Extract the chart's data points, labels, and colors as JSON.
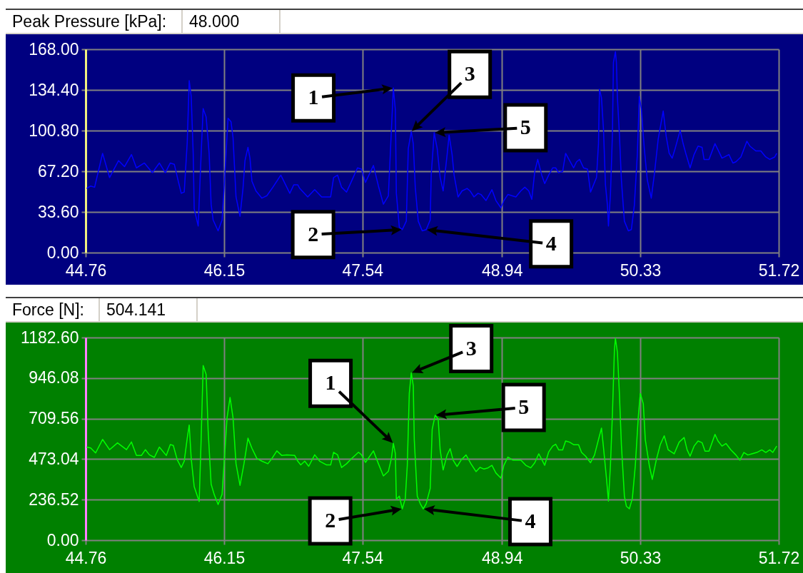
{
  "chart_data": [
    {
      "type": "line",
      "title": "Peak Pressure [kPa]:",
      "subtitle": "48.000",
      "x": [
        44.77,
        44.81,
        44.85,
        44.87,
        44.93,
        45.0,
        45.09,
        45.15,
        45.22,
        45.27,
        45.35,
        45.43,
        45.5,
        45.56,
        45.61,
        45.65,
        45.69,
        45.72,
        45.75,
        45.78,
        45.8,
        45.82,
        45.84,
        45.85,
        45.89,
        45.92,
        45.94,
        45.97,
        46.0,
        46.02,
        46.04,
        46.09,
        46.13,
        46.15,
        46.17,
        46.19,
        46.22,
        46.24,
        46.27,
        46.31,
        46.34,
        46.36,
        46.39,
        46.41,
        46.43,
        46.47,
        46.53,
        46.58,
        46.64,
        46.72,
        46.81,
        46.85,
        46.89,
        46.91,
        46.99,
        47.06,
        47.13,
        47.22,
        47.25,
        47.29,
        47.33,
        47.38,
        47.43,
        47.49,
        47.53,
        47.57,
        47.65,
        47.7,
        47.75,
        47.8,
        47.83,
        47.85,
        47.87,
        47.88,
        47.91,
        47.94,
        47.98,
        48.0,
        48.03,
        48.05,
        48.07,
        48.1,
        48.14,
        48.18,
        48.22,
        48.23,
        48.26,
        48.29,
        48.32,
        48.35,
        48.39,
        48.41,
        48.44,
        48.46,
        48.5,
        48.54,
        48.59,
        48.62,
        48.66,
        48.7,
        48.73,
        48.78,
        48.84,
        48.88,
        48.93,
        48.96,
        49.0,
        49.08,
        49.13,
        49.17,
        49.21,
        49.24,
        49.27,
        49.3,
        49.34,
        49.37,
        49.41,
        49.45,
        49.48,
        49.51,
        49.55,
        49.58,
        49.62,
        49.66,
        49.69,
        49.72,
        49.76,
        49.8,
        49.83,
        49.89,
        49.91,
        49.92,
        49.94,
        49.96,
        49.98,
        50.0,
        50.01,
        50.03,
        50.05,
        50.06,
        50.08,
        50.09,
        50.1,
        50.12,
        50.14,
        50.17,
        50.21,
        50.24,
        50.27,
        50.3,
        50.32,
        50.34,
        50.37,
        50.4,
        50.44,
        50.47,
        50.51,
        50.56,
        50.59,
        50.62,
        50.65,
        50.68,
        50.73,
        50.76,
        50.79,
        50.83,
        50.87,
        50.91,
        50.95,
        50.97,
        51.02,
        51.08,
        51.11,
        51.15,
        51.22,
        51.26,
        51.29,
        51.34,
        51.4,
        51.43,
        51.49,
        51.54,
        51.59,
        51.63,
        51.68,
        51.7
      ],
      "series": [
        {
          "color": "#0000ff",
          "values": [
            53,
            55,
            54,
            61,
            82,
            62,
            76,
            71,
            81,
            70,
            74,
            66,
            74,
            66,
            74,
            73,
            59,
            49,
            50,
            91,
            142,
            129,
            82,
            36,
            22,
            82,
            119,
            112,
            82,
            40,
            27,
            18,
            27,
            53,
            82,
            111,
            108,
            95,
            46,
            30,
            53,
            76,
            87,
            78,
            59,
            51,
            45,
            47,
            54,
            64,
            49,
            56,
            56,
            53,
            46,
            52,
            46,
            46,
            62,
            64,
            54,
            50,
            59,
            70,
            69,
            58,
            72,
            55,
            40,
            47,
            101,
            136,
            118,
            49,
            21,
            19,
            26,
            86,
            100,
            90,
            54,
            26,
            18,
            19,
            27,
            64,
            99,
            86,
            62,
            51,
            81,
            97,
            81,
            64,
            46,
            51,
            53,
            51,
            46,
            49,
            48,
            43,
            52,
            43,
            37,
            43,
            48,
            46,
            51,
            54,
            51,
            44,
            67,
            77,
            64,
            57,
            64,
            70,
            70,
            66,
            67,
            82,
            76,
            70,
            75,
            77,
            70,
            69,
            50,
            62,
            90,
            135,
            128,
            102,
            56,
            39,
            22,
            48,
            98,
            157,
            166,
            157,
            128,
            98,
            60,
            26,
            18,
            19,
            39,
            81,
            129,
            119,
            86,
            60,
            45,
            64,
            94,
            117,
            96,
            82,
            78,
            86,
            101,
            90,
            81,
            70,
            81,
            88,
            87,
            77,
            77,
            90,
            85,
            78,
            81,
            74,
            75,
            79,
            92,
            88,
            84,
            84,
            79,
            77,
            79,
            82
          ]
        }
      ],
      "xlim": [
        44.76,
        51.72
      ],
      "xticks": [
        44.76,
        46.15,
        47.54,
        48.94,
        50.33,
        51.72
      ],
      "ylim": [
        0,
        168
      ],
      "yticks": [
        {
          "value": 0,
          "label": "0.00"
        },
        {
          "value": 33.6,
          "label": "33.60"
        },
        {
          "value": 67.2,
          "label": "67.20"
        },
        {
          "value": 100.8,
          "label": "100.80"
        },
        {
          "value": 134.4,
          "label": "134.40"
        },
        {
          "value": 168,
          "label": "168.00"
        }
      ],
      "grid": true,
      "annotations": [
        {
          "text": "1",
          "x": 47.85,
          "y": 136
        },
        {
          "text": "2",
          "x": 47.94,
          "y": 19
        },
        {
          "text": "3",
          "x": 48.03,
          "y": 100
        },
        {
          "text": "4",
          "x": 48.18,
          "y": 19
        },
        {
          "text": "5",
          "x": 48.26,
          "y": 99
        }
      ]
    },
    {
      "type": "line",
      "title": "Force [N]:",
      "subtitle": "504.141",
      "x": [
        44.77,
        44.81,
        44.86,
        44.93,
        45.0,
        45.08,
        45.12,
        45.17,
        45.22,
        45.27,
        45.32,
        45.36,
        45.4,
        45.45,
        45.5,
        45.57,
        45.61,
        45.64,
        45.68,
        45.72,
        45.75,
        45.78,
        45.8,
        45.82,
        45.85,
        45.9,
        45.92,
        45.94,
        45.97,
        45.99,
        46.02,
        46.05,
        46.09,
        46.13,
        46.15,
        46.18,
        46.21,
        46.24,
        46.27,
        46.31,
        46.35,
        46.39,
        46.43,
        46.48,
        46.53,
        46.59,
        46.63,
        46.68,
        46.73,
        46.78,
        46.86,
        46.89,
        46.92,
        46.96,
        47.0,
        47.06,
        47.11,
        47.18,
        47.22,
        47.25,
        47.29,
        47.33,
        47.38,
        47.43,
        47.5,
        47.53,
        47.57,
        47.65,
        47.7,
        47.75,
        47.8,
        47.83,
        47.85,
        47.87,
        47.88,
        47.91,
        47.94,
        47.97,
        47.99,
        48.01,
        48.03,
        48.05,
        48.06,
        48.09,
        48.12,
        48.15,
        48.18,
        48.22,
        48.24,
        48.27,
        48.3,
        48.32,
        48.35,
        48.39,
        48.42,
        48.45,
        48.49,
        48.53,
        48.58,
        48.63,
        48.68,
        48.72,
        48.76,
        48.8,
        48.84,
        48.88,
        48.93,
        48.96,
        49.0,
        49.05,
        49.13,
        49.18,
        49.23,
        49.27,
        49.31,
        49.35,
        49.37,
        49.41,
        49.45,
        49.48,
        49.51,
        49.55,
        49.58,
        49.62,
        49.66,
        49.71,
        49.74,
        49.78,
        49.83,
        49.87,
        49.91,
        49.94,
        49.96,
        49.99,
        50.01,
        50.03,
        50.05,
        50.07,
        50.08,
        50.1,
        50.12,
        50.14,
        50.17,
        50.19,
        50.22,
        50.25,
        50.28,
        50.31,
        50.33,
        50.36,
        50.38,
        50.42,
        50.45,
        50.49,
        50.53,
        50.57,
        50.61,
        50.67,
        50.72,
        50.77,
        50.8,
        50.83,
        50.87,
        50.91,
        50.95,
        50.98,
        51.02,
        51.08,
        51.11,
        51.15,
        51.19,
        51.24,
        51.29,
        51.33,
        51.37,
        51.41,
        51.45,
        51.5,
        51.55,
        51.59,
        51.63,
        51.66,
        51.7
      ],
      "series": [
        {
          "color": "#00ff00",
          "values": [
            543,
            538,
            509,
            588,
            528,
            568,
            550,
            528,
            573,
            494,
            494,
            528,
            498,
            483,
            543,
            494,
            558,
            553,
            469,
            424,
            461,
            595,
            672,
            476,
            312,
            226,
            595,
            1019,
            967,
            640,
            327,
            268,
            208,
            268,
            446,
            714,
            833,
            714,
            446,
            320,
            446,
            595,
            536,
            476,
            461,
            446,
            476,
            521,
            494,
            498,
            494,
            461,
            439,
            461,
            431,
            498,
            461,
            439,
            439,
            513,
            498,
            424,
            446,
            476,
            513,
            498,
            454,
            521,
            446,
            375,
            402,
            476,
            565,
            506,
            238,
            257,
            183,
            243,
            437,
            856,
            976,
            901,
            587,
            257,
            213,
            183,
            213,
            302,
            647,
            729,
            707,
            527,
            410,
            497,
            534,
            467,
            430,
            467,
            497,
            445,
            400,
            425,
            415,
            422,
            437,
            392,
            362,
            437,
            485,
            467,
            467,
            437,
            422,
            452,
            504,
            460,
            437,
            515,
            549,
            560,
            527,
            527,
            579,
            572,
            557,
            557,
            512,
            490,
            452,
            497,
            587,
            654,
            542,
            362,
            228,
            437,
            737,
            1111,
            1178,
            1096,
            856,
            557,
            257,
            198,
            183,
            243,
            437,
            722,
            856,
            796,
            587,
            437,
            355,
            467,
            557,
            609,
            527,
            504,
            572,
            599,
            527,
            490,
            549,
            579,
            569,
            519,
            519,
            617,
            579,
            549,
            564,
            527,
            497,
            467,
            512,
            497,
            504,
            512,
            527,
            512,
            527,
            512,
            549
          ]
        }
      ],
      "xlim": [
        44.76,
        51.72
      ],
      "xticks": [
        44.76,
        46.15,
        47.54,
        48.94,
        50.33,
        51.72
      ],
      "ylim": [
        0,
        1182.6
      ],
      "yticks": [
        {
          "value": 0,
          "label": "0.00"
        },
        236.52,
        473.04,
        709.56,
        946.08,
        {
          "value": 1182.6,
          "label": "1182.60"
        }
      ],
      "grid": true,
      "annotations": [
        {
          "text": "1",
          "x": 47.85,
          "y": 565
        },
        {
          "text": "2",
          "x": 47.94,
          "y": 183
        },
        {
          "text": "3",
          "x": 48.03,
          "y": 976
        },
        {
          "text": "4",
          "x": 48.15,
          "y": 183
        },
        {
          "text": "5",
          "x": 48.27,
          "y": 729
        }
      ]
    }
  ]
}
